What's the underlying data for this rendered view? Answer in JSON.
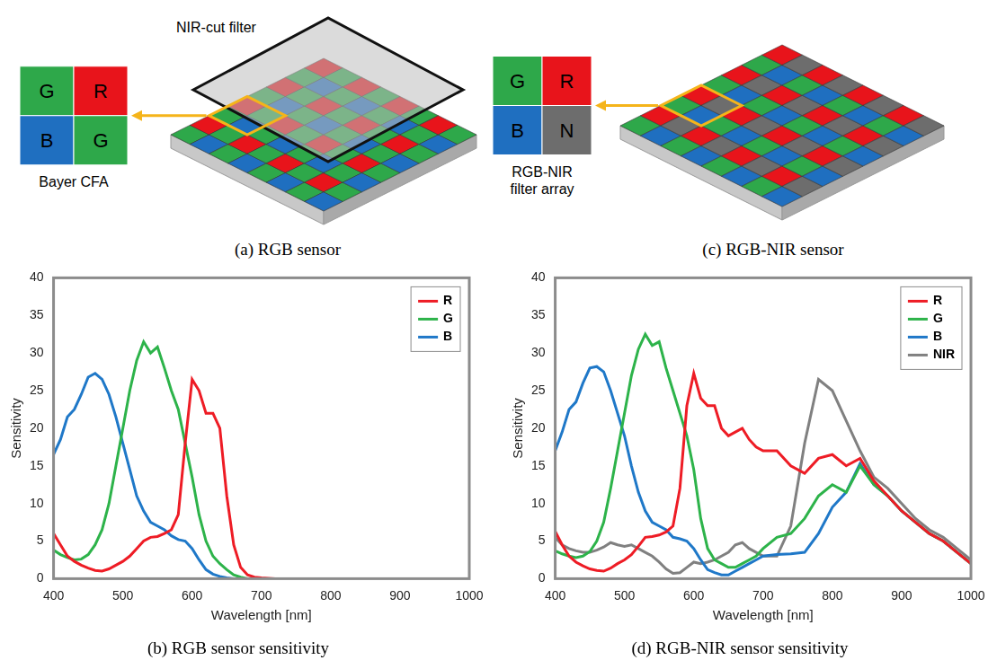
{
  "diagrams": [
    {
      "caption": "(a) RGB sensor",
      "filter": "NIR-cut filter",
      "array_label": "Bayer CFA",
      "cells": [
        {
          "label": "G",
          "color": "#2ea84a"
        },
        {
          "label": "R",
          "color": "#e8141b"
        },
        {
          "label": "B",
          "color": "#1f6fc0"
        },
        {
          "label": "G",
          "color": "#2ea84a"
        }
      ]
    },
    {
      "caption": "(c) RGB-NIR sensor",
      "array_label": "RGB-NIR filter array",
      "cells": [
        {
          "label": "G",
          "color": "#2ea84a"
        },
        {
          "label": "R",
          "color": "#e8141b"
        },
        {
          "label": "B",
          "color": "#1f6fc0"
        },
        {
          "label": "N",
          "color": "#6d6d6d"
        }
      ]
    }
  ],
  "chart_data": [
    {
      "type": "line",
      "title": "(b) RGB sensor sensitivity",
      "x_label": "Wavelength [nm]",
      "y_label": "Sensitivity",
      "x": [
        400,
        410,
        420,
        430,
        440,
        450,
        460,
        470,
        480,
        490,
        500,
        510,
        520,
        530,
        540,
        550,
        560,
        570,
        580,
        590,
        600,
        610,
        620,
        630,
        640,
        650,
        660,
        670,
        680,
        690,
        700,
        720,
        740,
        760,
        780,
        800,
        820,
        840,
        860,
        880,
        900,
        920,
        940,
        960,
        980,
        1000
      ],
      "xlim": [
        400,
        1000
      ],
      "xticks": [
        400,
        500,
        600,
        700,
        800,
        900,
        1000
      ],
      "ylim": [
        0,
        40
      ],
      "yticks": [
        0,
        5,
        10,
        15,
        20,
        25,
        30,
        35,
        40
      ],
      "grid": false,
      "legend": "top-right",
      "series": [
        {
          "name": "R",
          "color": "#ee1c25",
          "values": [
            6,
            4.5,
            3,
            2.3,
            1.8,
            1.4,
            1.1,
            1,
            1.3,
            1.8,
            2.3,
            3,
            4,
            5,
            5.5,
            5.6,
            6,
            6.5,
            8.5,
            18,
            26.5,
            25,
            22,
            22,
            20,
            11,
            4.5,
            1.5,
            0.5,
            0.2,
            0.1,
            0,
            0,
            0,
            0,
            0,
            0,
            0,
            0,
            0,
            0,
            0,
            0,
            0,
            0,
            0
          ]
        },
        {
          "name": "G",
          "color": "#2db34a",
          "values": [
            3.8,
            3.2,
            2.8,
            2.5,
            2.6,
            3.2,
            4.5,
            6.5,
            10,
            15,
            20,
            25,
            29,
            31.5,
            30,
            30.8,
            28,
            25,
            22.5,
            18,
            13.5,
            8.5,
            5,
            3,
            2,
            1.2,
            0.5,
            0.2,
            0,
            0,
            0,
            0,
            0,
            0,
            0,
            0,
            0,
            0,
            0,
            0,
            0,
            0,
            0,
            0,
            0,
            0
          ]
        },
        {
          "name": "B",
          "color": "#1f78c8",
          "values": [
            16.5,
            18.5,
            21.5,
            22.5,
            24.5,
            26.8,
            27.3,
            26.5,
            24.5,
            21.5,
            18,
            14.5,
            11,
            9,
            7.5,
            7,
            6.5,
            5.7,
            5.2,
            5,
            4,
            2.5,
            1.2,
            0.6,
            0.3,
            0.1,
            0,
            0,
            0,
            0,
            0,
            0,
            0,
            0,
            0,
            0,
            0,
            0,
            0,
            0,
            0,
            0,
            0,
            0,
            0,
            0
          ]
        }
      ]
    },
    {
      "type": "line",
      "title": "(d) RGB-NIR sensor sensitivity",
      "x_label": "Wavelength [nm]",
      "y_label": "Sensitivity",
      "x": [
        400,
        410,
        420,
        430,
        440,
        450,
        460,
        470,
        480,
        490,
        500,
        510,
        520,
        530,
        540,
        550,
        560,
        570,
        580,
        590,
        600,
        610,
        620,
        630,
        640,
        650,
        660,
        670,
        680,
        690,
        700,
        720,
        740,
        760,
        780,
        800,
        820,
        840,
        860,
        880,
        900,
        920,
        940,
        960,
        980,
        1000
      ],
      "xlim": [
        400,
        1000
      ],
      "xticks": [
        400,
        500,
        600,
        700,
        800,
        900,
        1000
      ],
      "ylim": [
        0,
        40
      ],
      "yticks": [
        0,
        5,
        10,
        15,
        20,
        25,
        30,
        35,
        40
      ],
      "grid": false,
      "legend": "top-right",
      "series": [
        {
          "name": "R",
          "color": "#ee1c25",
          "values": [
            6.3,
            4.5,
            3,
            2.2,
            1.7,
            1.3,
            1.1,
            1,
            1.4,
            2,
            2.5,
            3.2,
            4.3,
            5.5,
            5.6,
            5.8,
            6.2,
            7,
            12,
            23,
            27.3,
            24,
            23,
            23,
            20,
            19,
            19.5,
            20,
            18.5,
            17.5,
            17,
            17,
            15,
            14,
            16,
            16.5,
            15,
            16,
            13,
            11,
            9,
            7.5,
            6,
            5,
            3.5,
            2
          ]
        },
        {
          "name": "G",
          "color": "#2db34a",
          "values": [
            3.7,
            3.3,
            3,
            2.8,
            3,
            3.6,
            5,
            7.5,
            12,
            17,
            22,
            27,
            30.5,
            32.5,
            31,
            31.5,
            28,
            25,
            22,
            19,
            14.5,
            8,
            4,
            2.5,
            2,
            1.5,
            1.5,
            2,
            2.5,
            3,
            4,
            5.5,
            6,
            8,
            11,
            12.5,
            11.5,
            15,
            12.5,
            11,
            9,
            7.5,
            6,
            5,
            3.5,
            2
          ]
        },
        {
          "name": "B",
          "color": "#1f78c8",
          "values": [
            17,
            19.5,
            22.5,
            23.5,
            26,
            28,
            28.2,
            27.5,
            25,
            22,
            19,
            15,
            11.5,
            9,
            7.5,
            7,
            6.5,
            5.5,
            5.3,
            5,
            4,
            2.5,
            1.2,
            0.8,
            0.5,
            0.5,
            1,
            1.5,
            2,
            2.5,
            3,
            3.2,
            3.3,
            3.5,
            6,
            9.5,
            11.5,
            15.3,
            12.5,
            11,
            9,
            7.5,
            6,
            5,
            3.5,
            2
          ]
        },
        {
          "name": "NIR",
          "color": "#808080",
          "values": [
            5.5,
            4.5,
            4,
            3.7,
            3.5,
            3.5,
            3.8,
            4.2,
            4.8,
            4.5,
            4.3,
            4.5,
            4,
            3.5,
            3,
            2.2,
            1.3,
            0.7,
            0.8,
            1.5,
            2.2,
            2,
            2.2,
            2.5,
            3,
            3.5,
            4.5,
            4.8,
            4,
            3.5,
            3,
            3,
            7,
            18,
            26.5,
            25,
            21,
            17,
            13.5,
            12,
            10,
            8,
            6.5,
            5.5,
            4,
            2.5
          ]
        }
      ]
    }
  ]
}
